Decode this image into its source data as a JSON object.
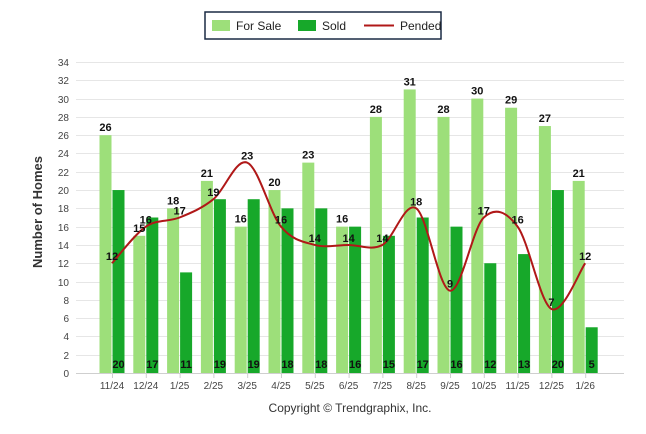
{
  "chart_data": {
    "type": "bar",
    "categories": [
      "11/24",
      "12/24",
      "1/25",
      "2/25",
      "3/25",
      "4/25",
      "5/25",
      "6/25",
      "7/25",
      "8/25",
      "9/25",
      "10/25",
      "11/25",
      "12/25",
      "1/26"
    ],
    "series": [
      {
        "name": "For Sale",
        "type": "bar",
        "color": "#9ddf7a",
        "values": [
          26,
          15,
          18,
          21,
          16,
          20,
          23,
          16,
          28,
          31,
          28,
          30,
          29,
          27,
          21
        ]
      },
      {
        "name": "Sold",
        "type": "bar",
        "color": "#17a82a",
        "values": [
          20,
          17,
          11,
          19,
          19,
          18,
          18,
          16,
          15,
          17,
          16,
          12,
          13,
          20,
          5
        ]
      },
      {
        "name": "Pended",
        "type": "line",
        "color": "#b01818",
        "values": [
          12,
          16,
          17,
          19,
          23,
          16,
          14,
          14,
          14,
          18,
          9,
          17,
          16,
          7,
          12
        ]
      }
    ],
    "ylabel": "Number of Homes",
    "ylim": [
      0,
      34
    ],
    "yticks": [
      0,
      2,
      4,
      6,
      8,
      10,
      12,
      14,
      16,
      18,
      20,
      22,
      24,
      26,
      28,
      30,
      32,
      34
    ],
    "grid": true,
    "legend_position": "top-center",
    "credit": "Copyright © Trendgraphix, Inc."
  }
}
